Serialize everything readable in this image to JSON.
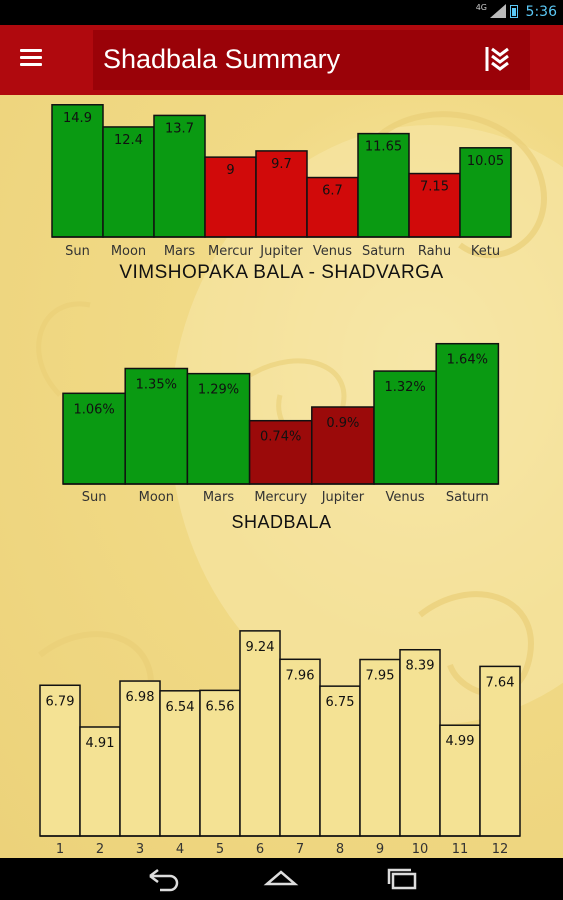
{
  "status_bar": {
    "time": "5:36",
    "network": "4G"
  },
  "app_bar": {
    "title": "Shadbala Summary",
    "menu_icon": "menu-icon",
    "action_icon": "layers-chevron-icon"
  },
  "colors": {
    "green": "#0a9a12",
    "red": "#d10a0a",
    "dark_red": "#9b0a0a",
    "pale": "#f4e294",
    "header": "#b0090e"
  },
  "chart_data": [
    {
      "type": "bar",
      "title": "VIMSHOPAKA BALA - SHADVARGA",
      "categories": [
        "Sun",
        "Moon",
        "Mars",
        "Mercur",
        "Jupiter",
        "Venus",
        "Saturn",
        "Rahu",
        "Ketu"
      ],
      "values": [
        14.9,
        12.4,
        13.7,
        9,
        9.7,
        6.7,
        11.65,
        7.15,
        10.05
      ],
      "value_labels": [
        "14.9",
        "12.4",
        "13.7",
        "9",
        "9.7",
        "6.7",
        "11.65",
        "7.15",
        "10.05"
      ],
      "colors": [
        "green",
        "green",
        "green",
        "red",
        "red",
        "red",
        "green",
        "red",
        "green"
      ],
      "ylim": [
        0,
        16
      ]
    },
    {
      "type": "bar",
      "title": "SHADBALA",
      "categories": [
        "Sun",
        "Moon",
        "Mars",
        "Mercury",
        "Jupiter",
        "Venus",
        "Saturn"
      ],
      "values": [
        1.06,
        1.35,
        1.29,
        0.74,
        0.9,
        1.32,
        1.64
      ],
      "value_labels": [
        "1.06%",
        "1.35%",
        "1.29%",
        "0.74%",
        "0.9%",
        "1.32%",
        "1.64%"
      ],
      "colors": [
        "green",
        "green",
        "green",
        "dark_red",
        "dark_red",
        "green",
        "green"
      ],
      "ylim": [
        0,
        1.8
      ]
    },
    {
      "type": "bar",
      "title": "",
      "categories": [
        "1",
        "2",
        "3",
        "4",
        "5",
        "6",
        "7",
        "8",
        "9",
        "10",
        "11",
        "12"
      ],
      "values": [
        6.79,
        4.91,
        6.98,
        6.54,
        6.56,
        9.24,
        7.96,
        6.75,
        7.95,
        8.39,
        4.99,
        7.64
      ],
      "value_labels": [
        "6.79",
        "4.91",
        "6.98",
        "6.54",
        "6.56",
        "9.24",
        "7.96",
        "6.75",
        "7.95",
        "8.39",
        "4.99",
        "7.64"
      ],
      "colors": [
        "pale",
        "pale",
        "pale",
        "pale",
        "pale",
        "pale",
        "pale",
        "pale",
        "pale",
        "pale",
        "pale",
        "pale"
      ],
      "ylim": [
        0,
        10
      ]
    }
  ],
  "nav_bar": {
    "back_icon": "back-icon",
    "home_icon": "home-icon",
    "recents_icon": "recents-icon"
  }
}
